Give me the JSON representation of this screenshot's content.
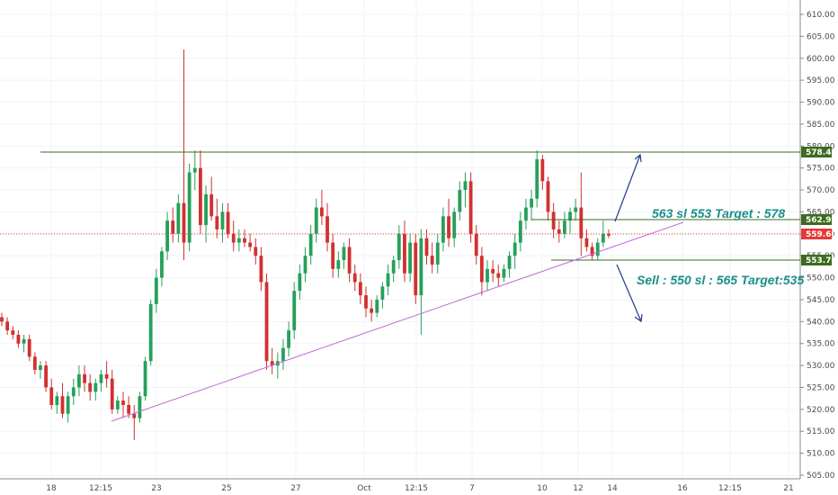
{
  "chart_data": {
    "type": "candlestick",
    "y_axis": {
      "min": 505,
      "max": 610,
      "ticks": [
        "610.00",
        "605.00",
        "600.00",
        "595.00",
        "590.00",
        "585.00",
        "580.00",
        "575.00",
        "570.00",
        "565.00",
        "560.00",
        "555.00",
        "550.00",
        "545.00",
        "540.00",
        "535.00",
        "530.00",
        "525.00",
        "520.00",
        "515.00",
        "510.00",
        "505.00"
      ]
    },
    "x_axis": {
      "ticks": [
        "18",
        "12:15",
        "23",
        "25",
        "27",
        "Oct",
        "12:15",
        "7",
        "10",
        "12",
        "14",
        "16",
        "12:15",
        "21"
      ]
    },
    "grid": true,
    "colors": {
      "up": "#26a05a",
      "down": "#d32f2f",
      "resistance_line": "#3d6b1f",
      "trendline": "#c26bd6",
      "price_line": "#e53935",
      "arrow": "#1f3c8c",
      "annotation": "#1a8f8a"
    },
    "candles": [
      [
        541,
        542,
        539,
        540
      ],
      [
        540,
        541,
        537,
        538
      ],
      [
        538,
        539,
        536,
        537
      ],
      [
        537,
        538,
        534,
        535
      ],
      [
        535,
        537,
        533,
        536
      ],
      [
        536,
        537,
        531,
        532
      ],
      [
        532,
        533,
        528,
        529
      ],
      [
        529,
        531,
        527,
        530
      ],
      [
        530,
        531,
        524,
        525
      ],
      [
        525,
        527,
        520,
        521
      ],
      [
        521,
        524,
        519,
        523
      ],
      [
        523,
        526,
        518,
        519
      ],
      [
        519,
        524,
        517,
        523
      ],
      [
        523,
        527,
        521,
        525
      ],
      [
        525,
        530,
        523,
        528
      ],
      [
        528,
        530,
        524,
        526
      ],
      [
        526,
        528,
        522,
        524
      ],
      [
        524,
        527,
        522,
        526
      ],
      [
        526,
        529,
        524,
        528
      ],
      [
        528,
        531,
        525,
        527
      ],
      [
        527,
        529,
        519,
        520
      ],
      [
        520,
        523,
        519,
        522
      ],
      [
        522,
        524,
        518,
        521
      ],
      [
        521,
        523,
        518,
        519
      ],
      [
        519,
        521,
        513,
        518
      ],
      [
        518,
        524,
        517,
        523
      ],
      [
        523,
        532,
        522,
        531
      ],
      [
        531,
        545,
        530,
        544
      ],
      [
        544,
        552,
        542,
        550
      ],
      [
        550,
        557,
        548,
        556
      ],
      [
        556,
        565,
        554,
        563
      ],
      [
        563,
        566,
        558,
        560
      ],
      [
        560,
        569,
        558,
        567
      ],
      [
        567,
        602,
        554,
        558
      ],
      [
        558,
        576,
        556,
        574
      ],
      [
        574,
        579,
        570,
        575
      ],
      [
        575,
        579,
        560,
        562
      ],
      [
        562,
        571,
        558,
        569
      ],
      [
        569,
        573,
        563,
        564
      ],
      [
        564,
        568,
        559,
        561
      ],
      [
        561,
        567,
        558,
        565
      ],
      [
        565,
        567,
        559,
        560
      ],
      [
        560,
        563,
        556,
        558
      ],
      [
        558,
        561,
        556,
        559
      ],
      [
        559,
        561,
        557,
        558
      ],
      [
        558,
        560,
        556,
        557
      ],
      [
        557,
        559,
        553,
        555
      ],
      [
        555,
        557,
        547,
        549
      ],
      [
        549,
        551,
        529,
        531
      ],
      [
        531,
        534,
        528,
        530
      ],
      [
        530,
        533,
        527,
        531
      ],
      [
        531,
        536,
        529,
        534
      ],
      [
        534,
        540,
        532,
        538
      ],
      [
        538,
        549,
        536,
        547
      ],
      [
        547,
        553,
        545,
        551
      ],
      [
        551,
        557,
        549,
        555
      ],
      [
        555,
        562,
        553,
        560
      ],
      [
        560,
        568,
        558,
        566
      ],
      [
        566,
        570,
        562,
        564
      ],
      [
        564,
        567,
        556,
        558
      ],
      [
        558,
        560,
        550,
        552
      ],
      [
        552,
        556,
        550,
        554
      ],
      [
        554,
        558,
        552,
        557
      ],
      [
        557,
        559,
        549,
        551
      ],
      [
        551,
        553,
        547,
        549
      ],
      [
        549,
        551,
        544,
        546
      ],
      [
        546,
        548,
        541,
        543
      ],
      [
        543,
        545,
        540,
        542
      ],
      [
        542,
        546,
        541,
        545
      ],
      [
        545,
        549,
        543,
        548
      ],
      [
        548,
        553,
        546,
        551
      ],
      [
        551,
        555,
        549,
        554
      ],
      [
        554,
        562,
        552,
        560
      ],
      [
        560,
        563,
        549,
        551
      ],
      [
        551,
        560,
        549,
        558
      ],
      [
        558,
        560,
        544,
        546
      ],
      [
        546,
        561,
        537,
        559
      ],
      [
        559,
        561,
        553,
        555
      ],
      [
        555,
        558,
        551,
        553
      ],
      [
        553,
        560,
        551,
        558
      ],
      [
        558,
        566,
        556,
        564
      ],
      [
        564,
        568,
        557,
        559
      ],
      [
        559,
        566,
        557,
        565
      ],
      [
        565,
        572,
        563,
        570
      ],
      [
        570,
        574,
        566,
        572
      ],
      [
        572,
        574,
        558,
        560
      ],
      [
        560,
        562,
        553,
        555
      ],
      [
        555,
        557,
        546,
        549
      ],
      [
        549,
        554,
        547,
        552
      ],
      [
        552,
        554,
        549,
        551
      ],
      [
        551,
        553,
        548,
        550
      ],
      [
        550,
        553,
        549,
        552
      ],
      [
        552,
        556,
        550,
        555
      ],
      [
        555,
        560,
        552,
        558
      ],
      [
        558,
        565,
        556,
        563
      ],
      [
        563,
        568,
        561,
        566
      ],
      [
        566,
        570,
        563,
        568
      ],
      [
        568,
        579,
        566,
        577
      ],
      [
        577,
        578,
        570,
        572
      ],
      [
        572,
        573,
        563,
        565
      ],
      [
        565,
        567,
        559,
        561
      ],
      [
        561,
        563,
        558,
        560
      ],
      [
        560,
        565,
        559,
        563
      ],
      [
        563,
        566,
        560,
        565
      ],
      [
        565,
        568,
        563,
        566
      ],
      [
        566,
        574,
        555,
        559
      ],
      [
        559,
        561,
        556,
        557
      ],
      [
        557,
        558,
        554,
        555
      ],
      [
        555,
        559,
        554,
        558
      ],
      [
        558,
        563,
        557,
        560
      ],
      [
        560,
        561,
        559,
        559.6
      ]
    ]
  },
  "current_price": {
    "label": "559.60",
    "value": 559.6
  },
  "levels": [
    {
      "label": "578.45",
      "value": 578.45,
      "color": "#3d6b1f"
    },
    {
      "label": "562.95",
      "value": 562.95,
      "color": "#3d6b1f"
    },
    {
      "label": "553.70",
      "value": 553.7,
      "color": "#3d6b1f"
    }
  ],
  "annotations": {
    "buy": "563 sl 553 Target : 578",
    "sell": "Sell : 550 sl : 565 Target:535"
  }
}
